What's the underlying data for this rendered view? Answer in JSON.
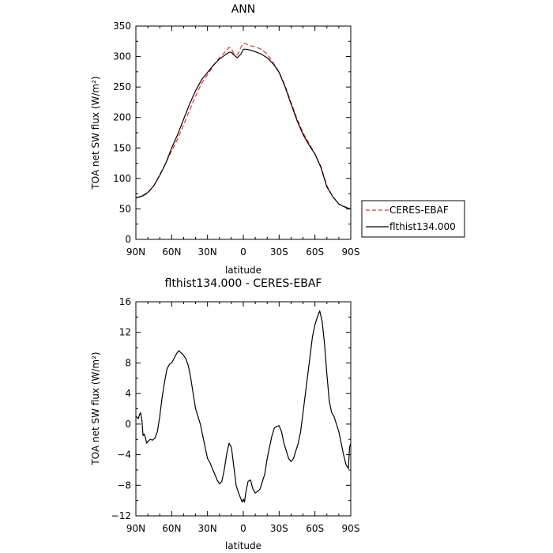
{
  "chart_data": [
    {
      "type": "line",
      "title": "ANN",
      "xlabel": "latitude",
      "ylabel": "TOA net SW flux (W/m²)",
      "xlim": [
        90,
        -90
      ],
      "ylim": [
        0,
        350
      ],
      "xticks": [
        {
          "value": 90,
          "label": "90N"
        },
        {
          "value": 60,
          "label": "60N"
        },
        {
          "value": 30,
          "label": "30N"
        },
        {
          "value": 0,
          "label": "0"
        },
        {
          "value": -30,
          "label": "30S"
        },
        {
          "value": -60,
          "label": "60S"
        },
        {
          "value": -90,
          "label": "90S"
        }
      ],
      "yticks": [
        0,
        50,
        100,
        150,
        200,
        250,
        300,
        350
      ],
      "legend_position": "right",
      "series": [
        {
          "name": "CERES-EBAF",
          "color": "#e8302a",
          "dash": "dashed",
          "x": [
            90,
            85,
            80,
            75,
            70,
            65,
            60,
            55,
            50,
            45,
            40,
            35,
            30,
            25,
            20,
            15,
            12,
            10,
            8,
            5,
            2,
            0,
            -2,
            -5,
            -10,
            -15,
            -20,
            -25,
            -30,
            -35,
            -40,
            -45,
            -50,
            -55,
            -60,
            -65,
            -70,
            -75,
            -80,
            -85,
            -90
          ],
          "y": [
            68,
            70,
            76,
            88,
            106,
            125,
            145,
            165,
            188,
            212,
            235,
            256,
            270,
            285,
            298,
            308,
            315,
            313,
            305,
            303,
            315,
            322,
            321,
            318,
            316,
            312,
            304,
            290,
            275,
            252,
            225,
            198,
            175,
            158,
            140,
            120,
            88,
            70,
            58,
            54,
            48
          ]
        },
        {
          "name": "flthist134.000",
          "color": "#000000",
          "dash": "solid",
          "x": [
            90,
            85,
            80,
            75,
            70,
            65,
            60,
            55,
            50,
            45,
            40,
            35,
            30,
            25,
            20,
            15,
            12,
            10,
            8,
            5,
            2,
            0,
            -2,
            -5,
            -10,
            -15,
            -20,
            -25,
            -30,
            -35,
            -40,
            -45,
            -50,
            -55,
            -60,
            -65,
            -70,
            -75,
            -80,
            -85,
            -90
          ],
          "y": [
            68,
            71,
            77,
            88,
            105,
            125,
            150,
            172,
            197,
            222,
            244,
            262,
            274,
            286,
            296,
            303,
            307,
            307,
            303,
            298,
            304,
            312,
            312,
            311,
            308,
            304,
            298,
            288,
            274,
            250,
            222,
            195,
            172,
            155,
            140,
            118,
            86,
            70,
            58,
            53,
            50
          ]
        }
      ]
    },
    {
      "type": "line",
      "title": "flthist134.000 - CERES-EBAF",
      "xlabel": "latitude",
      "ylabel": "TOA net SW flux (W/m²)",
      "xlim": [
        90,
        -90
      ],
      "ylim": [
        -12,
        16
      ],
      "xticks": [
        {
          "value": 90,
          "label": "90N"
        },
        {
          "value": 60,
          "label": "60N"
        },
        {
          "value": 30,
          "label": "30N"
        },
        {
          "value": 0,
          "label": "0"
        },
        {
          "value": -30,
          "label": "30S"
        },
        {
          "value": -60,
          "label": "60S"
        },
        {
          "value": -90,
          "label": "90S"
        }
      ],
      "yticks": [
        -12,
        -8,
        -4,
        0,
        4,
        8,
        12,
        16
      ],
      "series": [
        {
          "color": "#000000",
          "dash": "solid",
          "x": [
            90,
            89,
            88,
            87,
            86,
            85,
            84,
            83,
            82,
            81,
            80,
            78,
            76,
            74,
            72,
            70,
            68,
            66,
            64,
            62,
            60,
            58,
            56,
            54,
            52,
            50,
            48,
            46,
            44,
            42,
            40,
            38,
            36,
            34,
            32,
            30,
            28,
            26,
            24,
            22,
            20,
            18,
            16,
            14,
            12,
            10,
            8,
            6,
            4,
            2,
            1,
            0,
            -1,
            -2,
            -4,
            -6,
            -8,
            -10,
            -12,
            -14,
            -16,
            -18,
            -20,
            -22,
            -24,
            -26,
            -28,
            -30,
            -32,
            -34,
            -36,
            -38,
            -40,
            -42,
            -44,
            -46,
            -48,
            -50,
            -52,
            -54,
            -56,
            -58,
            -60,
            -62,
            -64,
            -66,
            -68,
            -70,
            -72,
            -74,
            -76,
            -78,
            -80,
            -82,
            -84,
            -86,
            -88,
            -89,
            -90
          ],
          "y": [
            1.0,
            0.9,
            0.7,
            1.2,
            1.5,
            0.5,
            -1.5,
            -1.3,
            -1.8,
            -2.5,
            -2.3,
            -2.0,
            -2.1,
            -1.8,
            -1.0,
            1.0,
            3.5,
            5.5,
            7.2,
            7.8,
            8.0,
            8.6,
            9.2,
            9.6,
            9.3,
            9.0,
            8.5,
            7.6,
            6.0,
            4.0,
            2.0,
            1.0,
            0.0,
            -1.5,
            -3.0,
            -4.5,
            -5.0,
            -5.8,
            -6.5,
            -7.3,
            -7.8,
            -7.5,
            -6.0,
            -4.0,
            -2.5,
            -3.0,
            -5.5,
            -8.0,
            -9.0,
            -9.8,
            -10.2,
            -9.8,
            -10.2,
            -9.0,
            -7.5,
            -7.3,
            -8.5,
            -9.0,
            -8.8,
            -8.5,
            -7.5,
            -6.5,
            -4.5,
            -3.0,
            -1.5,
            -0.5,
            -0.3,
            -0.2,
            -1.0,
            -2.5,
            -3.5,
            -4.5,
            -4.9,
            -4.5,
            -3.5,
            -2.5,
            -1.0,
            1.5,
            4.0,
            6.5,
            9.0,
            11.5,
            13.0,
            14.0,
            14.8,
            13.5,
            10.5,
            6.5,
            3.0,
            1.5,
            1.0,
            0.0,
            -1.0,
            -2.5,
            -4.0,
            -5.3,
            -5.8,
            -3.0,
            -2.5
          ]
        }
      ]
    }
  ]
}
